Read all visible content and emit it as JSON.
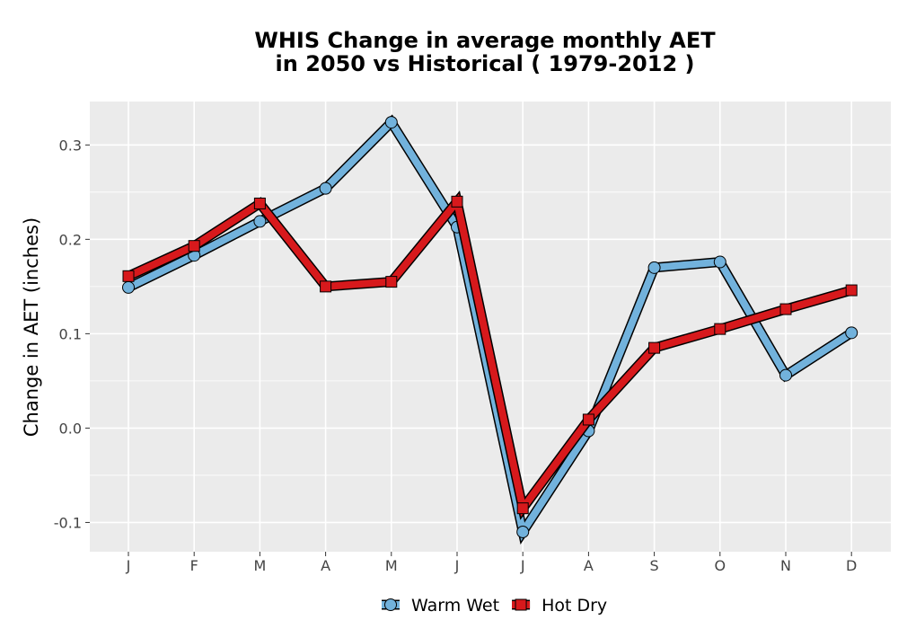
{
  "chart_data": {
    "type": "line",
    "title_line1": "WHIS  Change in average monthly AET",
    "title_line2": "in 2050 vs Historical ( 1979-2012 )",
    "xlabel": "",
    "ylabel": "Change in AET (inches)",
    "categories": [
      "J",
      "F",
      "M",
      "A",
      "M",
      "J",
      "J",
      "A",
      "S",
      "O",
      "N",
      "D"
    ],
    "yticks": [
      -0.1,
      0.0,
      0.1,
      0.2,
      0.3
    ],
    "ytick_labels": [
      "-0.1",
      "0.0",
      "0.1",
      "0.2",
      "0.3"
    ],
    "ylim": [
      -0.131,
      0.346
    ],
    "grid": true,
    "legend_position": "bottom",
    "series": [
      {
        "name": "Warm Wet",
        "color": "#72b2dc",
        "marker": "circle",
        "values": [
          0.149,
          0.183,
          0.219,
          0.254,
          0.324,
          0.213,
          -0.11,
          -0.003,
          0.17,
          0.176,
          0.056,
          0.101
        ]
      },
      {
        "name": "Hot Dry",
        "color": "#d7191c",
        "marker": "square",
        "values": [
          0.161,
          0.193,
          0.238,
          0.15,
          0.155,
          0.24,
          -0.085,
          0.009,
          0.085,
          0.105,
          0.126,
          0.146
        ]
      }
    ]
  }
}
